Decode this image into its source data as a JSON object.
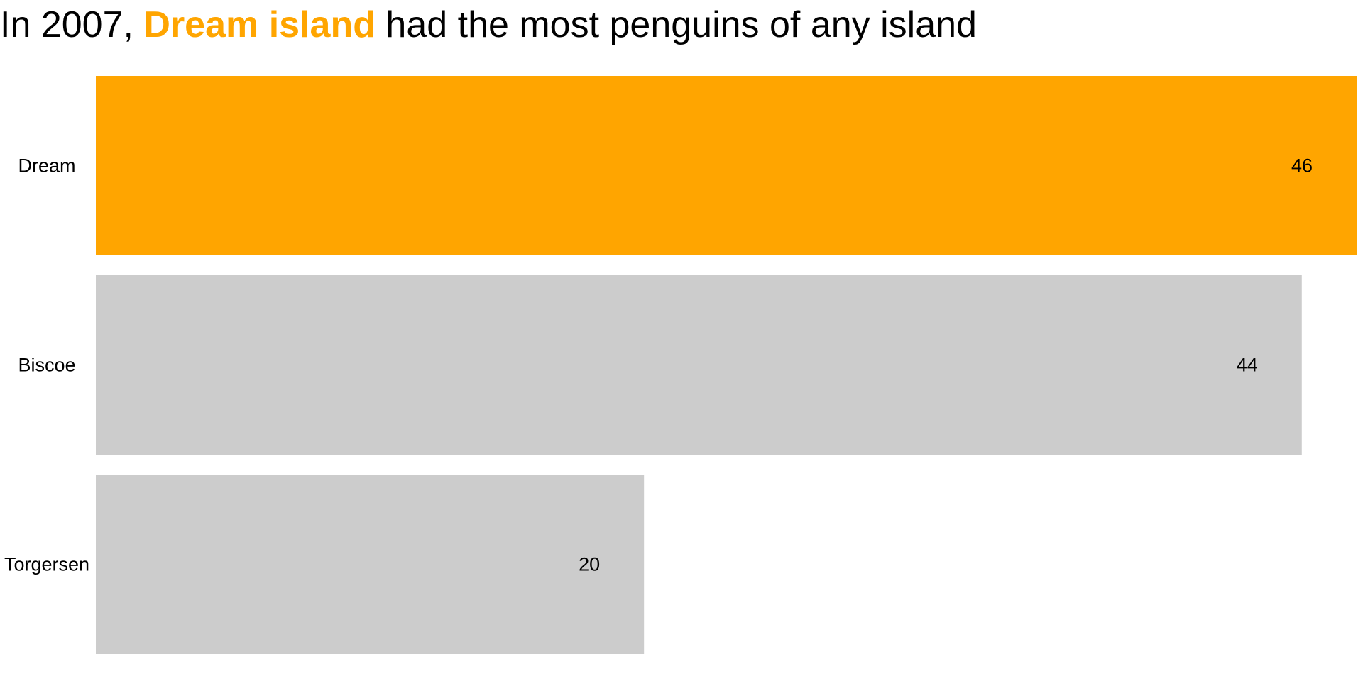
{
  "title": {
    "prefix": "In 2007, ",
    "highlight": "Dream island",
    "suffix": " had the most penguins of any island"
  },
  "colors": {
    "highlight": "#FFA500",
    "default_bar": "#CCCCCC",
    "text": "#000000",
    "background": "#FFFFFF"
  },
  "chart_data": {
    "type": "bar",
    "orientation": "horizontal",
    "title": "In 2007, Dream island had the most penguins of any island",
    "categories": [
      "Dream",
      "Biscoe",
      "Torgersen"
    ],
    "values": [
      46,
      44,
      20
    ],
    "value_labels": [
      "46",
      "44",
      "20"
    ],
    "highlighted_category": "Dream",
    "xlim": [
      0,
      46
    ],
    "xlabel": "",
    "ylabel": "",
    "grid": false,
    "axes_visible": false,
    "legend": "none",
    "data_labels": "inside-end"
  }
}
